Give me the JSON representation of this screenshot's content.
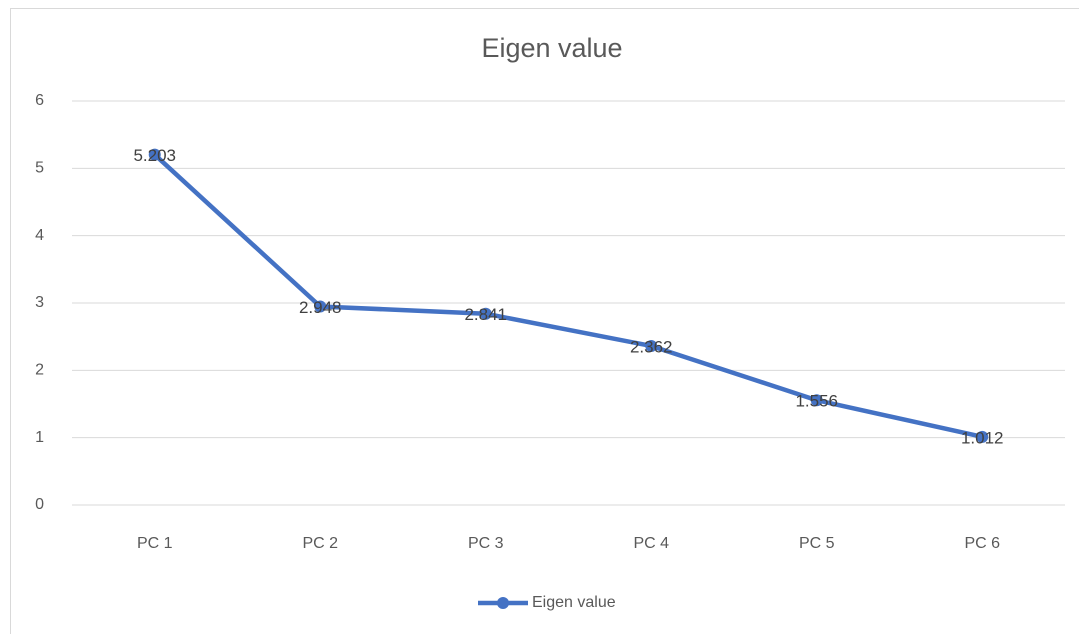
{
  "chart_data": {
    "type": "line",
    "title": "Eigen value",
    "categories": [
      "PC 1",
      "PC 2",
      "PC 3",
      "PC 4",
      "PC 5",
      "PC 6"
    ],
    "series": [
      {
        "name": "Eigen value",
        "color": "#4472c4",
        "values": [
          5.203,
          2.948,
          2.841,
          2.362,
          1.556,
          1.012
        ]
      }
    ],
    "ylim": [
      0,
      6
    ],
    "yticks": [
      0,
      1,
      2,
      3,
      4,
      5,
      6
    ],
    "grid": true,
    "legend": "bottom"
  }
}
